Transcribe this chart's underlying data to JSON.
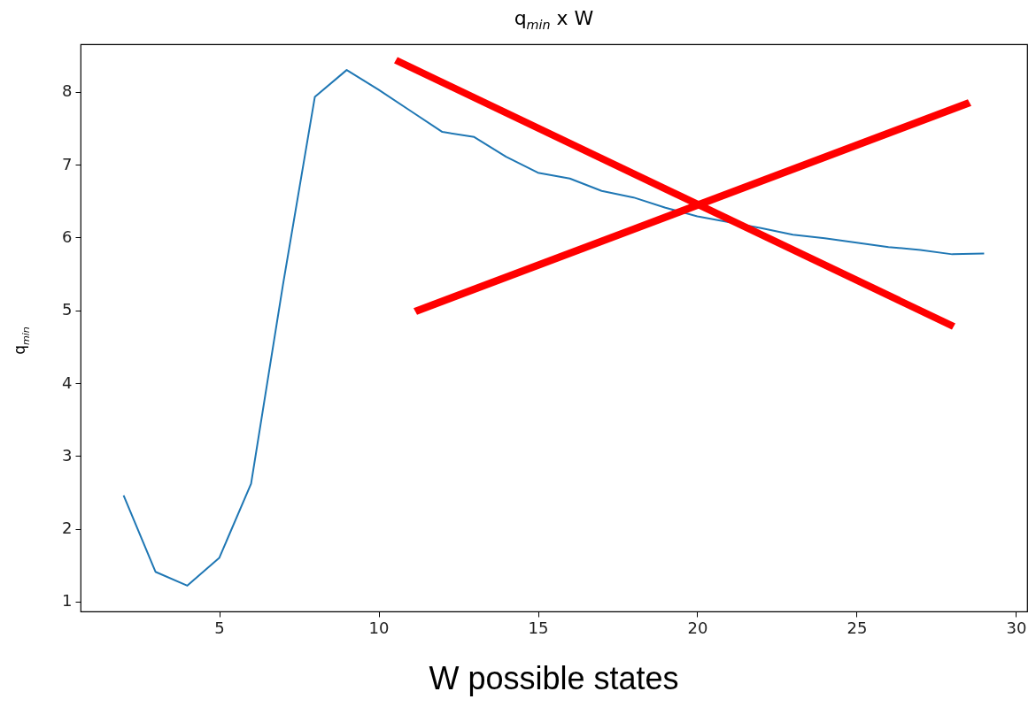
{
  "chart_data": {
    "type": "line",
    "title": "q$_{min}$ x W",
    "xlabel": "W possible states",
    "ylabel": "q$_{min}$",
    "x": [
      2,
      3,
      4,
      5,
      6,
      7,
      8,
      9,
      10,
      11,
      12,
      13,
      14,
      15,
      16,
      17,
      18,
      19,
      20,
      21,
      22,
      23,
      24,
      25,
      26,
      27,
      28,
      29
    ],
    "series": [
      {
        "color": "#1f77b4",
        "values": [
          2.46,
          1.41,
          1.22,
          1.6,
          2.62,
          5.35,
          7.93,
          8.3,
          8.03,
          7.74,
          7.45,
          7.38,
          7.11,
          6.89,
          6.81,
          6.64,
          6.55,
          6.41,
          6.29,
          null,
          6.13,
          6.04,
          5.99,
          5.93,
          5.87,
          5.83,
          5.77,
          5.78
        ]
      }
    ],
    "xlim": [
      0.65,
      30.35
    ],
    "xticks": [
      5,
      10,
      15,
      20,
      25,
      30
    ],
    "ylim": [
      0.866,
      8.654
    ],
    "yticks": [
      1,
      2,
      3,
      4,
      5,
      6,
      7,
      8
    ],
    "grid": false,
    "marker": "none",
    "line_style": "solid"
  }
}
